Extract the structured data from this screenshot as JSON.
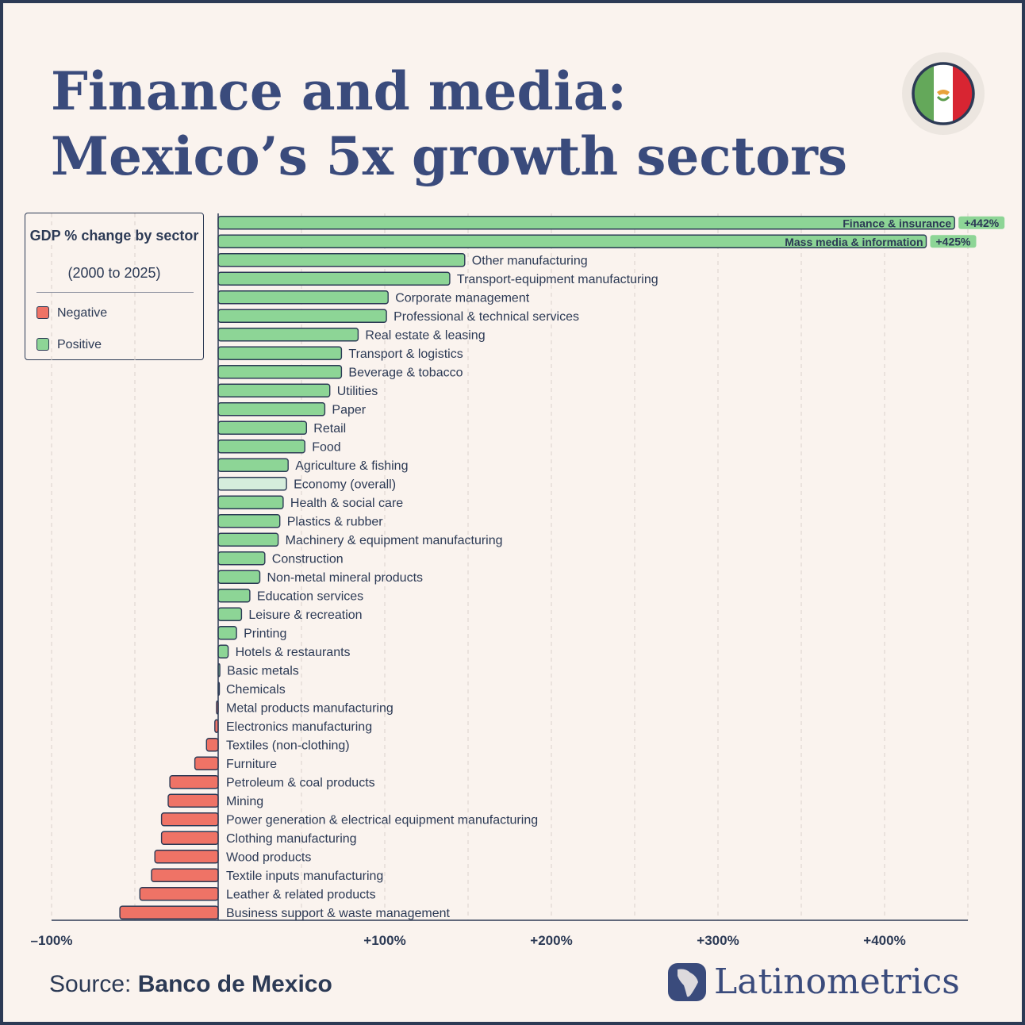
{
  "header": {
    "title": "Finance and media: Mexico’s 5x growth sectors"
  },
  "legend": {
    "title": "GDP % change by sector",
    "subtitle": "(2000 to 2025)",
    "items": [
      {
        "label": "Negative",
        "color": "#ef7366"
      },
      {
        "label": "Positive",
        "color": "#8dd596"
      }
    ]
  },
  "footer": {
    "source_prefix": "Source:",
    "source_name": "Banco de Mexico",
    "brand": "Latinometrics"
  },
  "flag": {
    "colors": [
      "#64a85a",
      "#ffffff",
      "#d82532"
    ]
  },
  "chart_data": {
    "type": "bar",
    "orientation": "horizontal",
    "xlim": [
      -100,
      450
    ],
    "x_ticks": [
      -100,
      100,
      200,
      300,
      400
    ],
    "x_tick_labels": [
      "–100%",
      "+100%",
      "+200%",
      "+300%",
      "+400%"
    ],
    "grid": "dashed vertical every 50%",
    "colors": {
      "positive": "#8dd596",
      "negative": "#ef7366",
      "overall": "#d5eddc",
      "axis": "#2c3a55"
    },
    "categories": [
      "Finance & insurance",
      "Mass media & information",
      "Other manufacturing",
      "Transport-equipment manufacturing",
      "Corporate management",
      "Professional & technical services",
      "Real estate & leasing",
      "Transport & logistics",
      "Beverage & tobacco",
      "Utilities",
      "Paper",
      "Retail",
      "Food",
      "Agriculture & fishing",
      "Economy (overall)",
      "Health & social care",
      "Plastics & rubber",
      "Machinery & equipment manufacturing",
      "Construction",
      "Non-metal mineral products",
      "Education services",
      "Leisure & recreation",
      "Printing",
      "Hotels & restaurants",
      "Basic metals",
      "Chemicals",
      "Metal products manufacturing",
      "Electronics manufacturing",
      "Textiles (non-clothing)",
      "Furniture",
      "Petroleum & coal products",
      "Mining",
      "Power generation & electrical equipment manufacturing",
      "Clothing manufacturing",
      "Wood products",
      "Textile inputs manufacturing",
      "Leather & related products",
      "Business support & waste management"
    ],
    "values": [
      442,
      425,
      148,
      139,
      102,
      101,
      84,
      74,
      74,
      67,
      64,
      53,
      52,
      42,
      41,
      39,
      37,
      36,
      28,
      25,
      19,
      14,
      11,
      6,
      1,
      0,
      -1,
      -2,
      -7,
      -14,
      -29,
      -30,
      -34,
      -34,
      -38,
      -40,
      -47,
      -59
    ],
    "highlighted_labels": [
      "+442%",
      "+425%"
    ],
    "overall_category": "Economy (overall)"
  }
}
